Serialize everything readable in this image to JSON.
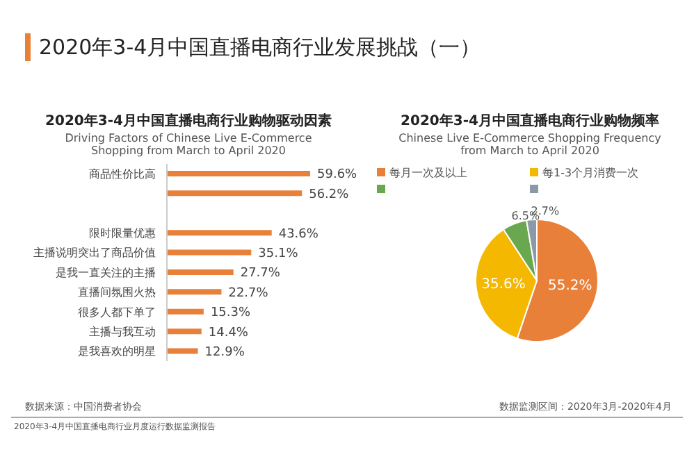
{
  "chart_data": [
    {
      "type": "bar",
      "orientation": "horizontal",
      "title": "2020年3-4月中国直播电商行业购物驱动因素",
      "subtitle": "Driving Factors of Chinese Live E-Commerce Shopping from March to April 2020",
      "categories": [
        "商品性价比高",
        null,
        null,
        "限时限量优惠",
        "主播说明突出了商品价值",
        "是我一直关注的主播",
        "直播间氛围火热",
        "很多人都下单了",
        "主播与我互动",
        "是我喜欢的明星"
      ],
      "values": [
        59.6,
        56.2,
        null,
        43.6,
        35.1,
        27.7,
        22.7,
        15.3,
        14.4,
        12.9
      ],
      "color": "#e8803a",
      "value_labels": [
        "59.6%",
        "56.2%",
        null,
        "43.6%",
        "35.1%",
        "27.7%",
        "22.7%",
        "15.3%",
        "14.4%",
        "12.9%"
      ],
      "annotations": [
        "2020年3-4月中国直播电商行业发展挑战（一）",
        "数据来源：中国消费者协会",
        "2020年3-4月中国直播电商行业月度运行数据监测报告"
      ]
    },
    {
      "type": "pie",
      "title": "2020年3-4月中国直播电商行业购物频率",
      "subtitle": "Chinese Live E-Commerce Shopping Frequency from March to April 2020",
      "categories": [
        "每月一次及以上",
        "每1-3个月消费一次",
        null,
        null
      ],
      "values": [
        55.2,
        35.6,
        6.5,
        2.7
      ],
      "colors": [
        "#e8803a",
        "#f5b800",
        "#6aa84f",
        "#8c9aa8"
      ],
      "legend": "top",
      "value_labels": [
        "55.2%",
        "35.6%",
        "6.5%",
        "2.7%"
      ],
      "annotations": [
        "数据监测区间：2020年3月-2020年4月"
      ]
    }
  ]
}
